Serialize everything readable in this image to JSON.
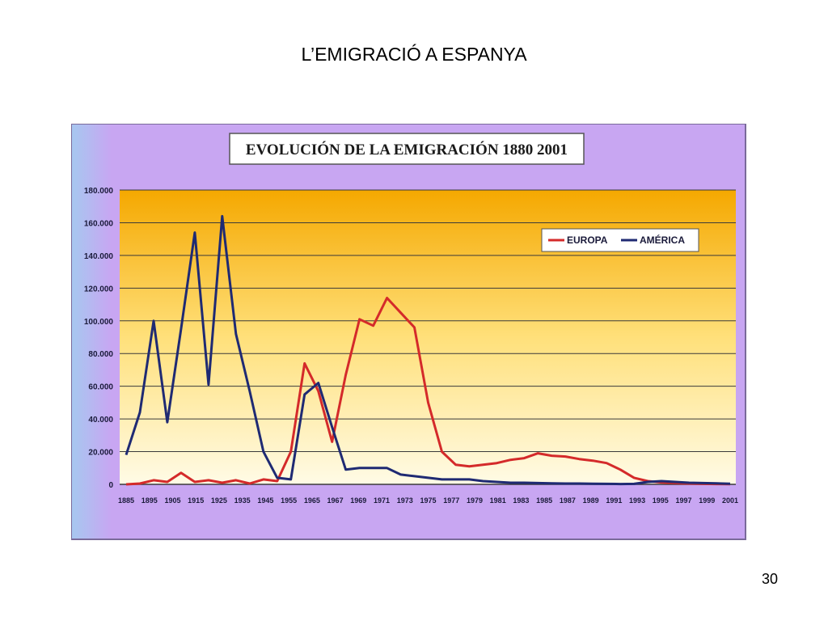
{
  "slide": {
    "title": "L’EMIGRACIÓ A ESPANYA",
    "page_number": "30"
  },
  "colors": {
    "frame_background": "#c8a6f2",
    "plot_top": "#f5a800",
    "plot_bottom": "#fffbe6",
    "grid": "#3a3a3a",
    "europa": "#d42a2a",
    "america": "#1f2a73"
  },
  "chart_data": {
    "type": "line",
    "title": "EVOLUCIÓN DE LA EMIGRACIÓN 1880 2001",
    "xlabel": "",
    "ylabel": "",
    "ylim": [
      0,
      180000
    ],
    "y_ticks": [
      0,
      20000,
      40000,
      60000,
      80000,
      100000,
      120000,
      140000,
      160000,
      180000
    ],
    "y_tick_labels": [
      "0",
      "20.000",
      "40.000",
      "60.000",
      "80.000",
      "100.000",
      "120.000",
      "140.000",
      "160.000",
      "180.000"
    ],
    "x_tick_labels": [
      "1885",
      "1895",
      "1905",
      "1915",
      "1925",
      "1935",
      "1945",
      "1955",
      "1965",
      "1967",
      "1969",
      "1971",
      "1973",
      "1975",
      "1977",
      "1979",
      "1981",
      "1983",
      "1985",
      "1987",
      "1989",
      "1991",
      "1993",
      "1995",
      "1997",
      "1999",
      "2001"
    ],
    "grid": true,
    "legend_position": "top-right",
    "series": [
      {
        "name": "EUROPA",
        "color": "#d42a2a",
        "values": [
          0,
          500,
          2500,
          1500,
          7000,
          1500,
          2500,
          1000,
          2500,
          500,
          3000,
          2000,
          20000,
          74000,
          57000,
          26000,
          67000,
          101000,
          97000,
          114000,
          105000,
          96000,
          50000,
          20000,
          12000,
          11000,
          12000,
          13000,
          15000,
          16000,
          19000,
          17500,
          17000,
          15500,
          14500,
          13000,
          9000,
          4000,
          2000,
          1200,
          800,
          500,
          300,
          200,
          100
        ]
      },
      {
        "name": "AMÉRICA",
        "color": "#1f2a73",
        "values": [
          18000,
          44000,
          100000,
          38000,
          95000,
          154000,
          61000,
          164000,
          92000,
          57000,
          20000,
          4000,
          3000,
          55000,
          62000,
          35000,
          9000,
          10000,
          10000,
          10000,
          6000,
          5000,
          4000,
          3000,
          3000,
          3000,
          2000,
          1500,
          1000,
          1000,
          800,
          600,
          500,
          500,
          400,
          300,
          200,
          300,
          1500,
          2000,
          1500,
          1000,
          800,
          600,
          400
        ]
      }
    ]
  }
}
